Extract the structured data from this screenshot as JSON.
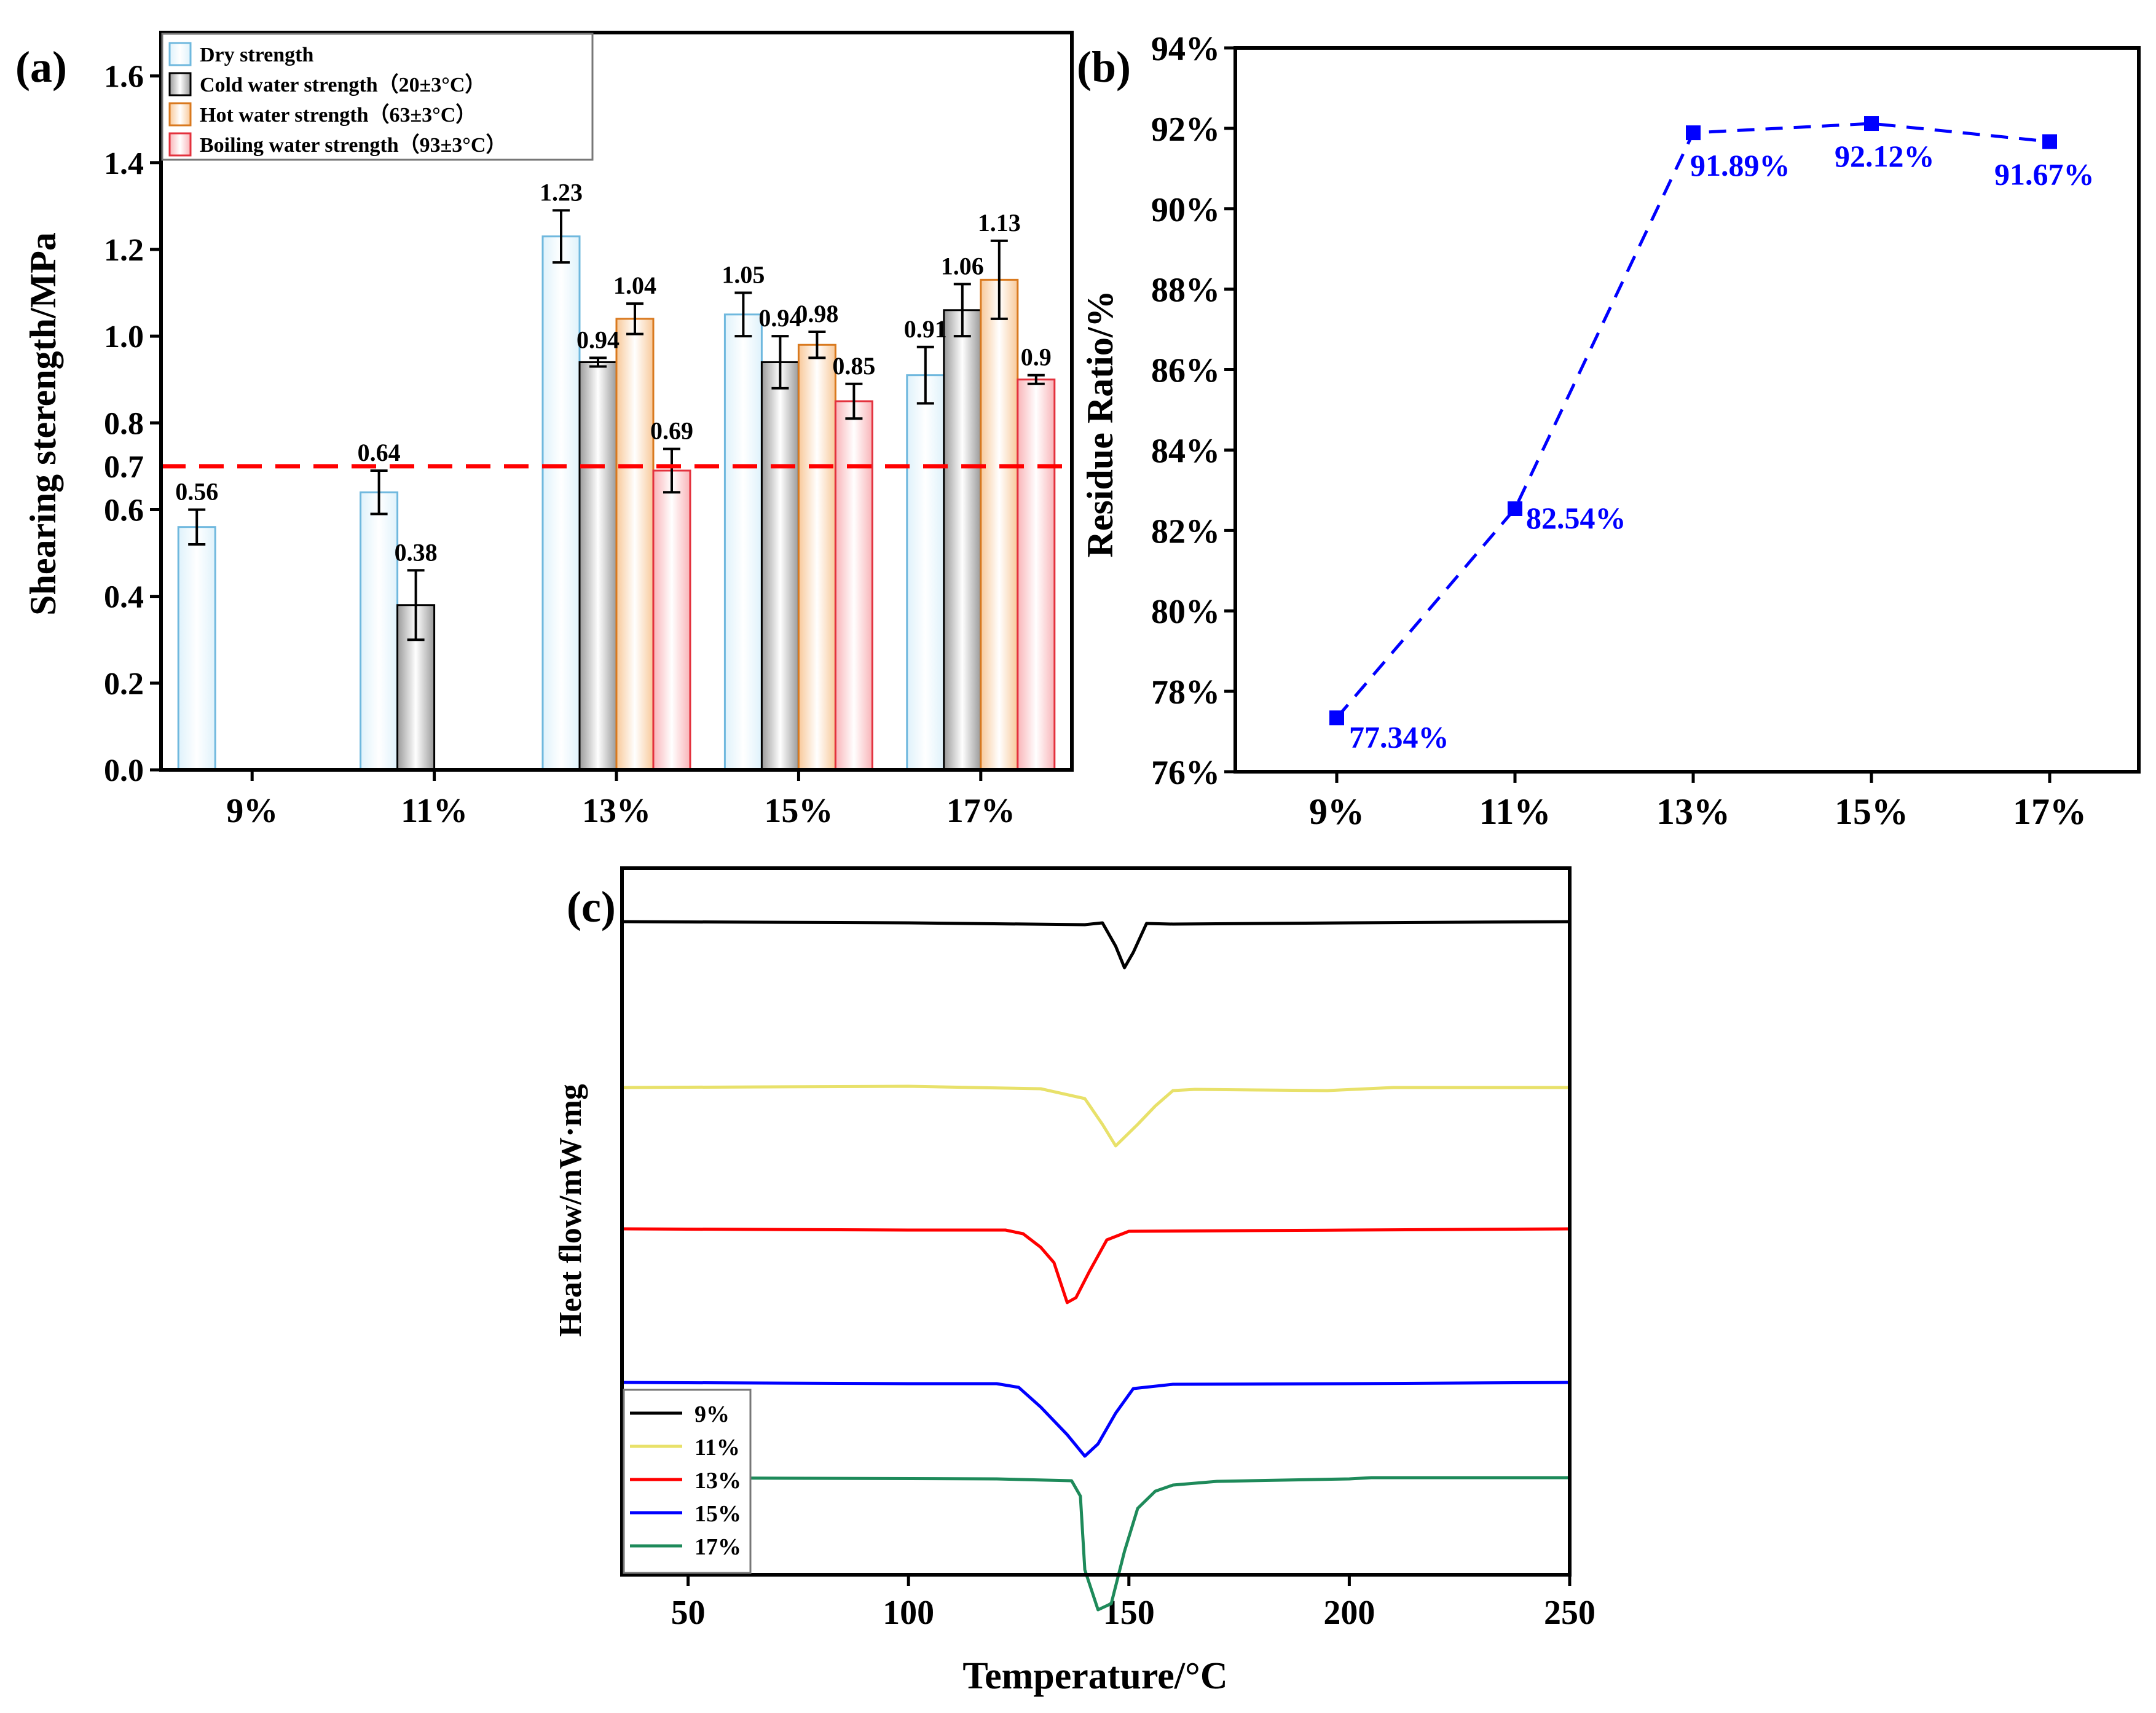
{
  "figure": {
    "panel_letters": [
      "(a)",
      "(b)",
      "(c)"
    ]
  },
  "colors": {
    "dry": "#dff2fb",
    "dry_edge": "#6fb8de",
    "cold": "#9a9a9a",
    "cold_edge": "#000000",
    "hot": "#f8c99a",
    "hot_edge": "#d9791e",
    "boil": "#f9b4b8",
    "boil_edge": "#e3313d",
    "threshold": "#ff0000",
    "ratio": "#0000ff",
    "c9": "#000000",
    "c11": "#e8e16a",
    "c13": "#ff0000",
    "c15": "#0000ff",
    "c17": "#1e8a5a"
  },
  "chart_data": [
    {
      "type": "bar",
      "panel": "(a)",
      "ylabel": "Shearing sterength/MPa",
      "xlabel": "",
      "categories": [
        "9%",
        "11%",
        "13%",
        "15%",
        "17%"
      ],
      "ylim": [
        0,
        1.7
      ],
      "yticks": [
        0.0,
        0.2,
        0.4,
        0.6,
        0.8,
        1.0,
        1.2,
        1.4,
        1.6
      ],
      "ytick_labels": [
        "0.0",
        "0.2",
        "0.4",
        "0.6",
        "0.8",
        "1.0",
        "1.2",
        "1.4",
        "1.6"
      ],
      "threshold": {
        "value": 0.7,
        "label": "0.7"
      },
      "series": [
        {
          "name": "Dry strength",
          "key": "dry",
          "values": [
            0.56,
            0.64,
            1.23,
            1.05,
            0.91
          ],
          "errors": [
            0.04,
            0.05,
            0.06,
            0.05,
            0.065
          ],
          "labels": [
            "0.56",
            "0.64",
            "1.23",
            "1.05",
            "0.91"
          ]
        },
        {
          "name": "Cold water strength（20±3°C）",
          "key": "cold",
          "values": [
            null,
            0.38,
            0.94,
            0.94,
            1.06
          ],
          "errors": [
            null,
            0.08,
            0.01,
            0.06,
            0.06
          ],
          "labels": [
            "",
            "0.38",
            "0.94",
            "0.94",
            "1.06"
          ]
        },
        {
          "name": "Hot water strength（63±3°C）",
          "key": "hot",
          "values": [
            null,
            null,
            1.04,
            0.98,
            1.13
          ],
          "errors": [
            null,
            null,
            0.035,
            0.03,
            0.09
          ],
          "labels": [
            "",
            "",
            "1.04",
            "0.98",
            "1.13"
          ]
        },
        {
          "name": "Boiling water strength（93±3°C）",
          "key": "boil",
          "values": [
            null,
            null,
            0.69,
            0.85,
            0.9
          ],
          "errors": [
            null,
            null,
            0.05,
            0.04,
            0.01
          ],
          "labels": [
            "",
            "",
            "0.69",
            "0.85",
            "0.9"
          ]
        }
      ],
      "legend_position": "top-left"
    },
    {
      "type": "line",
      "panel": "(b)",
      "ylabel": "Residue Ratio/%",
      "xlabel": "",
      "categories": [
        "9%",
        "11%",
        "13%",
        "15%",
        "17%"
      ],
      "values": [
        77.34,
        82.54,
        91.89,
        92.12,
        91.67
      ],
      "labels": [
        "77.34%",
        "82.54%",
        "91.89%",
        "92.12%",
        "91.67%"
      ],
      "ylim": [
        76,
        94
      ],
      "yticks": [
        76,
        78,
        80,
        82,
        84,
        86,
        88,
        90,
        92,
        94
      ],
      "ytick_labels": [
        "76%",
        "78%",
        "80%",
        "82%",
        "84%",
        "86%",
        "88%",
        "90%",
        "92%",
        "94%"
      ],
      "style": "dashed with square markers"
    },
    {
      "type": "line",
      "panel": "(c)",
      "xlabel": "Temperature/°C",
      "ylabel": "Heat flow/mW·mg",
      "xlim": [
        35,
        250
      ],
      "xticks": [
        50,
        100,
        150,
        200,
        250
      ],
      "xtick_labels": [
        "50",
        "100",
        "150",
        "200",
        "250"
      ],
      "y_units": "arbitrary (stacked curves, offset = curve baseline level, dips = endothermic peaks)",
      "series": [
        {
          "name": "9%",
          "key": "c9",
          "offset": 0,
          "points": [
            [
              35,
              0
            ],
            [
              100,
              -2
            ],
            [
              140,
              -5
            ],
            [
              144,
              -2
            ],
            [
              147,
              -40
            ],
            [
              149,
              -75
            ],
            [
              151,
              -50
            ],
            [
              154,
              -3
            ],
            [
              160,
              -4
            ],
            [
              200,
              -2
            ],
            [
              250,
              0
            ]
          ]
        },
        {
          "name": "11%",
          "key": "c11",
          "offset": 270,
          "points": [
            [
              35,
              0
            ],
            [
              100,
              2
            ],
            [
              130,
              -2
            ],
            [
              140,
              -18
            ],
            [
              144,
              -60
            ],
            [
              147,
              -95
            ],
            [
              152,
              -60
            ],
            [
              156,
              -30
            ],
            [
              160,
              -5
            ],
            [
              165,
              -3
            ],
            [
              195,
              -5
            ],
            [
              210,
              0
            ],
            [
              250,
              0
            ]
          ]
        },
        {
          "name": "13%",
          "key": "c13",
          "offset": 500,
          "points": [
            [
              35,
              0
            ],
            [
              100,
              -2
            ],
            [
              122,
              -2
            ],
            [
              126,
              -8
            ],
            [
              130,
              -30
            ],
            [
              133,
              -55
            ],
            [
              136,
              -120
            ],
            [
              138,
              -112
            ],
            [
              141,
              -70
            ],
            [
              145,
              -18
            ],
            [
              150,
              -4
            ],
            [
              200,
              -2
            ],
            [
              250,
              0
            ]
          ]
        },
        {
          "name": "15%",
          "key": "c15",
          "offset": 750,
          "points": [
            [
              35,
              0
            ],
            [
              100,
              -2
            ],
            [
              120,
              -2
            ],
            [
              125,
              -8
            ],
            [
              130,
              -40
            ],
            [
              136,
              -85
            ],
            [
              140,
              -120
            ],
            [
              143,
              -100
            ],
            [
              147,
              -50
            ],
            [
              151,
              -10
            ],
            [
              160,
              -3
            ],
            [
              200,
              -2
            ],
            [
              250,
              0
            ]
          ]
        },
        {
          "name": "17%",
          "key": "c17",
          "offset": 905,
          "points": [
            [
              35,
              0
            ],
            [
              120,
              -2
            ],
            [
              137,
              -5
            ],
            [
              139,
              -30
            ],
            [
              140,
              -150
            ],
            [
              143,
              -215
            ],
            [
              146,
              -205
            ],
            [
              149,
              -120
            ],
            [
              152,
              -50
            ],
            [
              156,
              -22
            ],
            [
              160,
              -12
            ],
            [
              170,
              -6
            ],
            [
              200,
              -2
            ],
            [
              205,
              0
            ],
            [
              250,
              0
            ]
          ]
        }
      ],
      "legend_position": "bottom-left"
    }
  ]
}
